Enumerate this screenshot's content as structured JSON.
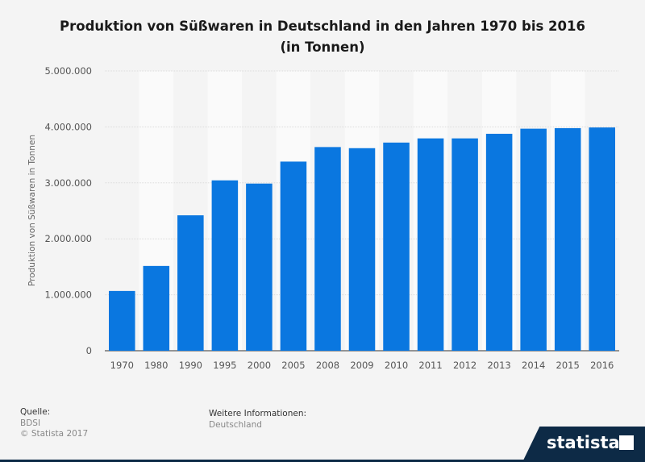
{
  "title_line1": "Produktion von Süßwaren in Deutschland in den Jahren 1970 bis 2016",
  "title_line2": "(in Tonnen)",
  "footer": {
    "source_label": "Quelle:",
    "source": "BDSI",
    "copyright": "© Statista 2017",
    "info_label": "Weitere Informationen:",
    "info": "Deutschland",
    "logo": "statista"
  },
  "colors": {
    "bar": "#0a77e0",
    "background": "#f4f4f4"
  },
  "chart_data": {
    "type": "bar",
    "title": "Produktion von Süßwaren in Deutschland in den Jahren 1970 bis 2016 (in Tonnen)",
    "xlabel": "",
    "ylabel": "Produktion von Süßwaren in Tonnen",
    "categories": [
      "1970",
      "1980",
      "1990",
      "1995",
      "2000",
      "2005",
      "2008",
      "2009",
      "2010",
      "2011",
      "2012",
      "2013",
      "2014",
      "2015",
      "2016"
    ],
    "values": [
      1068000,
      1515000,
      2420000,
      3045000,
      2987000,
      3380000,
      3640000,
      3620000,
      3720000,
      3795000,
      3795000,
      3877000,
      3968000,
      3978000,
      3990000
    ],
    "ylim": [
      0,
      5000000
    ],
    "yticks": [
      0,
      1000000,
      2000000,
      3000000,
      4000000,
      5000000
    ],
    "ytick_labels": [
      "0",
      "1.000.000",
      "2.000.000",
      "3.000.000",
      "4.000.000",
      "5.000.000"
    ],
    "grid": true,
    "legend": "none"
  }
}
